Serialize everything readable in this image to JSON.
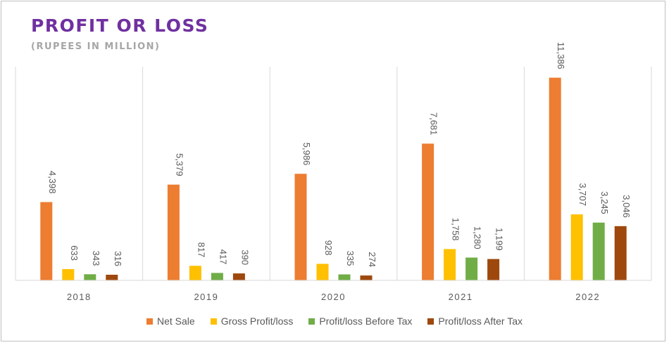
{
  "title": "PROFIT OR LOSS",
  "subtitle": "(RUPEES IN MILLION)",
  "chart_data": {
    "type": "bar",
    "title": "PROFIT OR LOSS",
    "subtitle": "(RUPEES IN MILLION)",
    "categories": [
      "2018",
      "2019",
      "2020",
      "2021",
      "2022"
    ],
    "series": [
      {
        "name": "Net Sale",
        "color": "#ed7d31",
        "values": [
          4398,
          5379,
          5986,
          7681,
          11386
        ],
        "labels": [
          "4,398",
          "5,379",
          "5,986",
          "7,681",
          "11,386"
        ]
      },
      {
        "name": "Gross Profit/loss",
        "color": "#ffc000",
        "values": [
          633,
          817,
          928,
          1758,
          3707
        ],
        "labels": [
          "633",
          "817",
          "928",
          "1,758",
          "3,707"
        ]
      },
      {
        "name": "Profit/loss Before Tax",
        "color": "#70ad47",
        "values": [
          343,
          417,
          335,
          1280,
          3245
        ],
        "labels": [
          "343",
          "417",
          "335",
          "1,280",
          "3,245"
        ]
      },
      {
        "name": "Profit/loss After Tax",
        "color": "#9e480e",
        "values": [
          316,
          390,
          274,
          1199,
          3046
        ],
        "labels": [
          "316",
          "390",
          "274",
          "1,199",
          "3,046"
        ]
      }
    ],
    "ylim": [
      0,
      12000
    ],
    "xlabel": "",
    "ylabel": "",
    "grid": "vertical category separators",
    "legend": "bottom",
    "data_labels": "rotated, above bars"
  }
}
